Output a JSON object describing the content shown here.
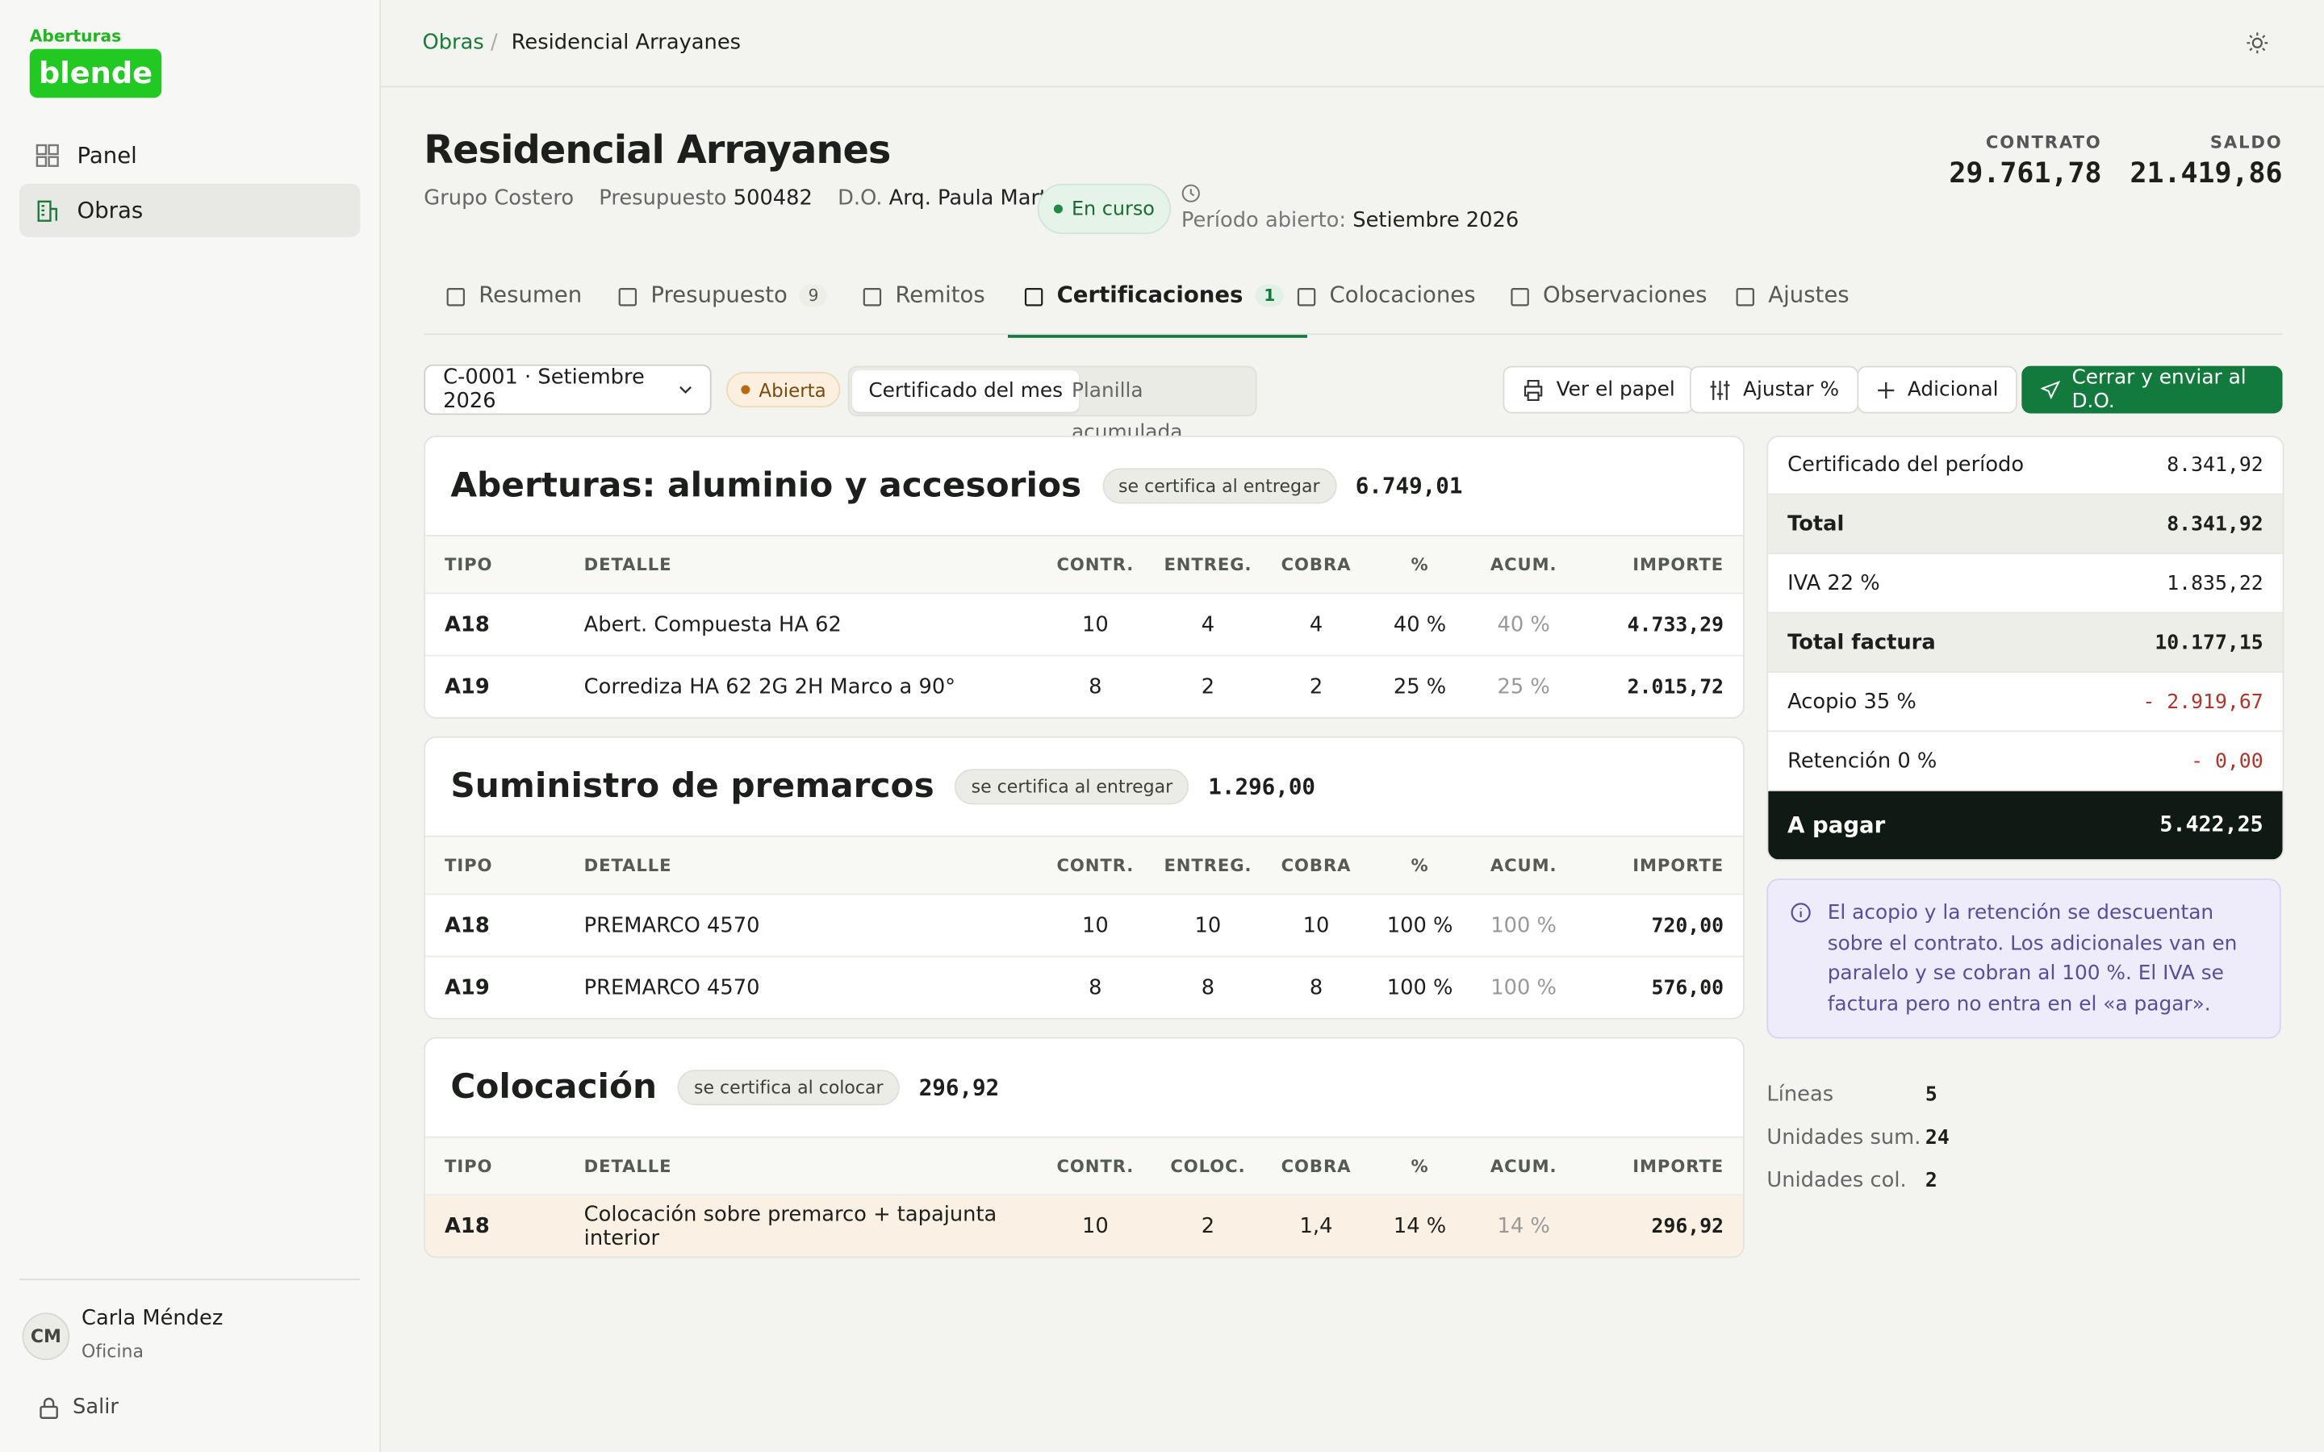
{
  "brand": {
    "small": "Aberturas",
    "logo": "blende"
  },
  "nav": [
    "Panel",
    "Obras"
  ],
  "user": {
    "initials": "CM",
    "name": "Carla Méndez",
    "role": "Oficina",
    "logout": "Salir"
  },
  "breadcrumb": [
    "Obras",
    "Residencial Arrayanes"
  ],
  "header": {
    "title": "Residencial Arrayanes",
    "client": "Grupo Costero",
    "budget_label": "Presupuesto",
    "budget": "500482",
    "do_label": "D.O.",
    "do": "Arq. Paula Martínez",
    "status": "En curso",
    "period_label": "Período abierto:",
    "period": "Setiembre 2026",
    "contract_label": "CONTRATO",
    "contract": "29.761,78",
    "balance_label": "SALDO",
    "balance": "21.419,86"
  },
  "tabs": [
    {
      "label": "Resumen"
    },
    {
      "label": "Presupuesto",
      "badge": "9"
    },
    {
      "label": "Remitos"
    },
    {
      "label": "Certificaciones",
      "badge": "1"
    },
    {
      "label": "Colocaciones"
    },
    {
      "label": "Observaciones"
    },
    {
      "label": "Ajustes"
    }
  ],
  "toolbar": {
    "select": "C-0001 · Setiembre 2026",
    "state": "Abierta",
    "views": [
      "Certificado del mes",
      "Planilla acumulada"
    ],
    "buttons": [
      "Ver el papel",
      "Ajustar %",
      "Adicional",
      "Cerrar y enviar al D.O."
    ]
  },
  "sections": [
    {
      "title": "Aberturas: aluminio y accesorios",
      "rule": "se certifica al entregar",
      "total": "6.749,01",
      "columns": [
        "TIPO",
        "DETALLE",
        "CONTR.",
        "ENTREG.",
        "COBRA",
        "%",
        "ACUM.",
        "IMPORTE"
      ],
      "rows": [
        [
          "A18",
          "Abert. Compuesta HA 62",
          "10",
          "4",
          "4",
          "40 %",
          "40 %",
          "4.733,29"
        ],
        [
          "A19",
          "Corrediza HA 62 2G 2H Marco a 90°",
          "8",
          "2",
          "2",
          "25 %",
          "25 %",
          "2.015,72"
        ]
      ]
    },
    {
      "title": "Suministro de premarcos",
      "rule": "se certifica al entregar",
      "total": "1.296,00",
      "columns": [
        "TIPO",
        "DETALLE",
        "CONTR.",
        "ENTREG.",
        "COBRA",
        "%",
        "ACUM.",
        "IMPORTE"
      ],
      "rows": [
        [
          "A18",
          "PREMARCO 4570",
          "10",
          "10",
          "10",
          "100 %",
          "100 %",
          "720,00"
        ],
        [
          "A19",
          "PREMARCO 4570",
          "8",
          "8",
          "8",
          "100 %",
          "100 %",
          "576,00"
        ]
      ]
    },
    {
      "title": "Colocación",
      "rule": "se certifica al colocar",
      "total": "296,92",
      "columns": [
        "TIPO",
        "DETALLE",
        "CONTR.",
        "COLOC.",
        "COBRA",
        "%",
        "ACUM.",
        "IMPORTE"
      ],
      "rows": [
        [
          "A18",
          "Colocación sobre premarco + tapajunta interior",
          "10",
          "2",
          "1,4",
          "14 %",
          "14 %",
          "296,92"
        ]
      ]
    }
  ],
  "summary": {
    "rows": [
      [
        "Certificado del período",
        "8.341,92"
      ],
      [
        "Total",
        "8.341,92"
      ],
      [
        "IVA 22 %",
        "1.835,22"
      ],
      [
        "Total factura",
        "10.177,15"
      ],
      [
        "Acopio 35 %",
        "- 2.919,67"
      ],
      [
        "Retención 0 %",
        "- 0,00"
      ]
    ],
    "pay": [
      "A pagar",
      "5.422,25"
    ]
  },
  "note": "El acopio y la retención se descuentan sobre el contrato. Los adicionales van en paralelo y se cobran al 100 %. El IVA se factura pero no entra en el «a pagar».",
  "stats": [
    [
      "Líneas",
      "5"
    ],
    [
      "Unidades sum.",
      "24"
    ],
    [
      "Unidades col.",
      "2"
    ]
  ]
}
